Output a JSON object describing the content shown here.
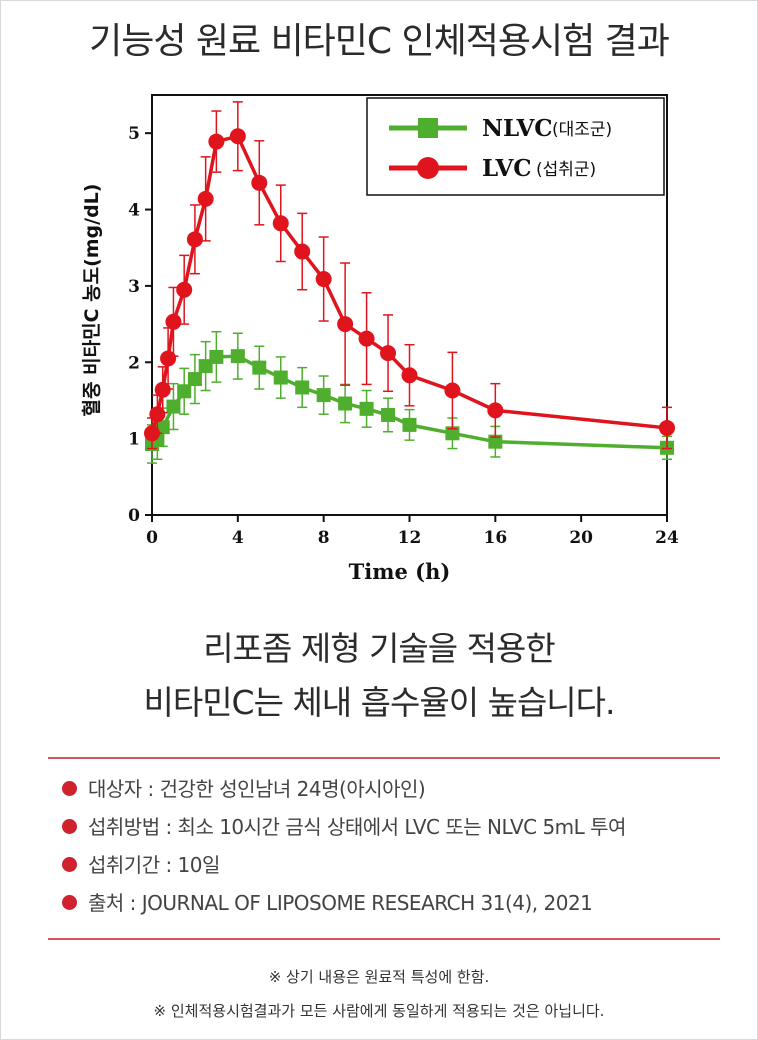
{
  "page": {
    "title": "기능성 원료 비타민C 인체적용시험 결과",
    "headline_1": "리포좀 제형 기술을 적용한",
    "headline_2": "비타민C는 체내 흡수율이 높습니다.",
    "details": [
      "대상자 : 건강한 성인남녀 24명(아시아인)",
      "섭취방법 : 최소 10시간 금식 상태에서 LVC 또는 NLVC 5mL 투여",
      "섭취기간 : 10일",
      "출처 : JOURNAL OF LIPOSOME RESEARCH 31(4), 2021"
    ],
    "note_1": "※ 상기 내용은 원료적 특성에 한함.",
    "note_2": "※ 인체적용시험결과가 모든 사람에게 동일하게 적용되는 것은 아닙니다.",
    "bullet_color": "#d0222e"
  },
  "chart_data": {
    "type": "line",
    "xlabel": "Time (h)",
    "ylabel": "혈중 비타민C 농도(mg/dL)",
    "xlim": [
      0,
      24
    ],
    "ylim": [
      0,
      5.5
    ],
    "xticks": [
      0,
      4,
      8,
      12,
      16,
      20,
      24
    ],
    "yticks": [
      0,
      1,
      2,
      3,
      4,
      5
    ],
    "grid": false,
    "legend_position": "top-right",
    "series": [
      {
        "name": "NLVC",
        "name_suffix": "(대조군)",
        "color": "#4fae2e",
        "marker": "square",
        "x": [
          0,
          0.25,
          0.5,
          1,
          1.5,
          2,
          2.5,
          3,
          4,
          5,
          6,
          7,
          8,
          9,
          10,
          11,
          12,
          14,
          16,
          24
        ],
        "y": [
          0.93,
          0.98,
          1.15,
          1.42,
          1.62,
          1.78,
          1.95,
          2.07,
          2.08,
          1.93,
          1.8,
          1.67,
          1.57,
          1.46,
          1.39,
          1.31,
          1.18,
          1.07,
          0.96,
          0.88
        ],
        "error": [
          0.25,
          0.25,
          0.25,
          0.3,
          0.3,
          0.32,
          0.32,
          0.33,
          0.3,
          0.28,
          0.27,
          0.26,
          0.25,
          0.25,
          0.24,
          0.22,
          0.2,
          0.2,
          0.2,
          0.15
        ]
      },
      {
        "name": "LVC",
        "name_suffix": "(섭취군)",
        "color": "#e0141d",
        "marker": "circle",
        "x": [
          0,
          0.25,
          0.5,
          0.75,
          1,
          1.5,
          2,
          2.5,
          3,
          4,
          5,
          6,
          7,
          8,
          9,
          10,
          11,
          12,
          14,
          16,
          24
        ],
        "y": [
          1.07,
          1.32,
          1.64,
          2.05,
          2.53,
          2.95,
          3.61,
          4.14,
          4.89,
          4.96,
          4.35,
          3.82,
          3.45,
          3.09,
          2.5,
          2.31,
          2.12,
          1.83,
          1.63,
          1.37,
          1.14
        ],
        "error": [
          0.2,
          0.25,
          0.3,
          0.4,
          0.45,
          0.45,
          0.45,
          0.55,
          0.4,
          0.45,
          0.55,
          0.5,
          0.5,
          0.55,
          0.8,
          0.6,
          0.5,
          0.4,
          0.5,
          0.35,
          0.27
        ]
      }
    ]
  }
}
